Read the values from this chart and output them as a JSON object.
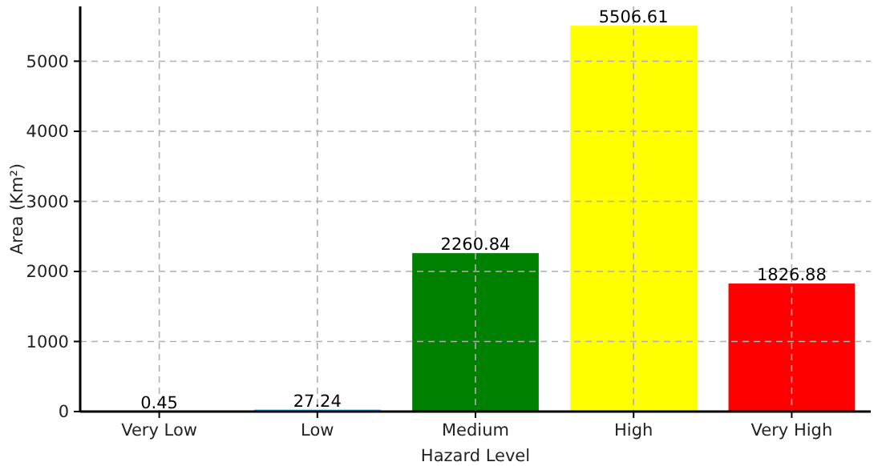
{
  "chart_data": {
    "type": "bar",
    "xlabel": "Hazard Level",
    "ylabel": "Area (Km²)",
    "categories": [
      "Very Low",
      "Low",
      "Medium",
      "High",
      "Very High"
    ],
    "values": [
      0.45,
      27.24,
      2260.84,
      5506.61,
      1826.88
    ],
    "colors": [
      "#0000ff",
      "#00bfff",
      "#008000",
      "#ffff00",
      "#ff0000"
    ],
    "data_labels": true,
    "ylim": [
      0,
      5782
    ],
    "yticks": [
      0,
      1000,
      2000,
      3000,
      4000,
      5000
    ],
    "grid": true
  }
}
